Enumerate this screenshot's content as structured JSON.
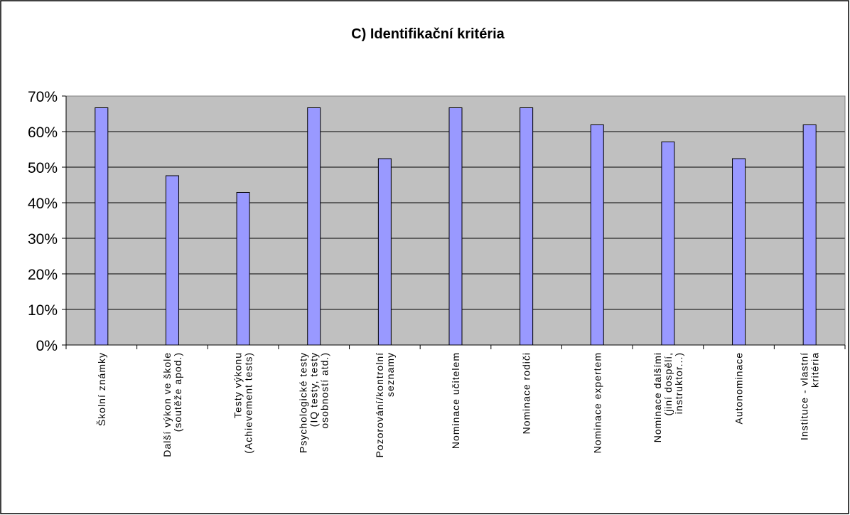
{
  "chart_data": {
    "type": "bar",
    "title": "C) Identifikační kritéria",
    "categories": [
      [
        "Školní známky"
      ],
      [
        "Další výkon ve škole",
        "(soutěže apod.)"
      ],
      [
        "Testy výkonu",
        "(Achievement tests)"
      ],
      [
        "Psychologické testy",
        "(IQ testy, testy",
        "osobností atd.)"
      ],
      [
        "Pozorování/kontrolní",
        "seznamy"
      ],
      [
        "Nominace učitelem"
      ],
      [
        "Nominace rodiči"
      ],
      [
        "Nominace expertem"
      ],
      [
        "Nominace dalšími",
        "(jiní dospělí,",
        "instruktor...)"
      ],
      [
        "Autonominace"
      ],
      [
        "Instituce - vlastní",
        "kritéria"
      ]
    ],
    "values": [
      66.7,
      47.6,
      42.9,
      66.7,
      52.4,
      66.7,
      66.7,
      61.9,
      57.1,
      52.4,
      61.9
    ],
    "color": "#9999ff",
    "ylim": [
      0,
      70
    ],
    "yticks": [
      {
        "value": 0,
        "label": "0%"
      },
      {
        "value": 10,
        "label": "10%"
      },
      {
        "value": 20,
        "label": "20%"
      },
      {
        "value": 30,
        "label": "30%"
      },
      {
        "value": 40,
        "label": "40%"
      },
      {
        "value": 50,
        "label": "50%"
      },
      {
        "value": 60,
        "label": "60%"
      },
      {
        "value": 70,
        "label": "70%"
      }
    ],
    "grid": true
  }
}
